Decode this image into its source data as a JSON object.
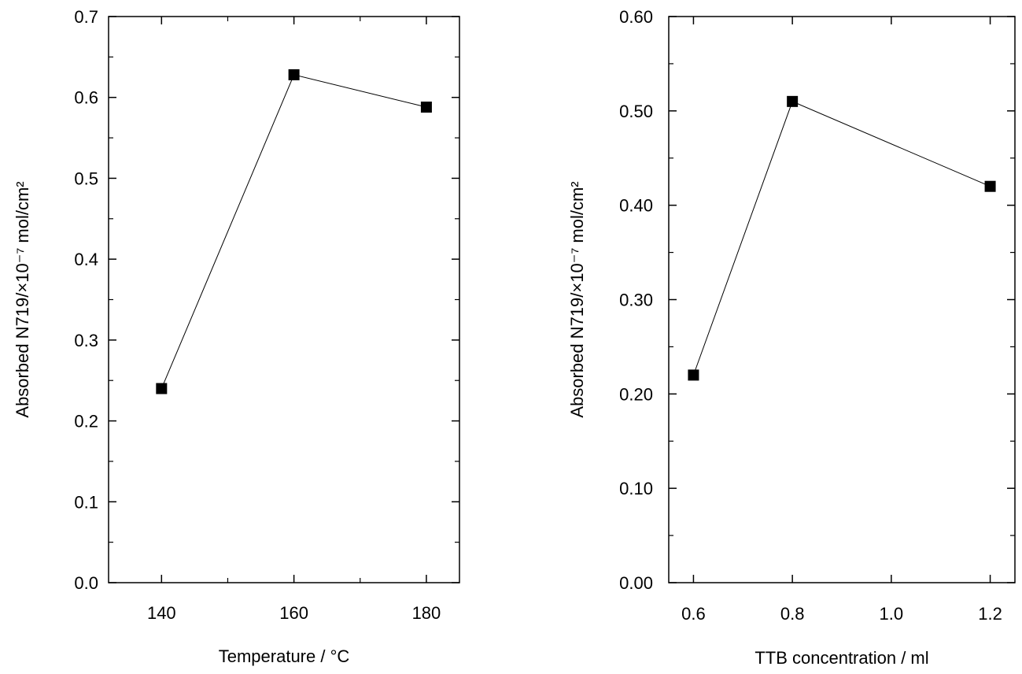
{
  "chart_data": [
    {
      "type": "line",
      "x": [
        140,
        160,
        180
      ],
      "series": [
        {
          "values": [
            0.24,
            0.628,
            0.588
          ]
        }
      ],
      "xlabel": "Temperature / °C",
      "ylabel": "Absorbed N719/×10⁻⁷ mol/cm²",
      "xlim": [
        132,
        185
      ],
      "ylim": [
        0,
        0.7
      ],
      "xticks": [
        "140",
        "160",
        "180"
      ],
      "yticks": [
        "0.0",
        "0.1",
        "0.2",
        "0.3",
        "0.4",
        "0.5",
        "0.6",
        "0.7"
      ],
      "grid": false,
      "legend": "none"
    },
    {
      "type": "line",
      "x": [
        0.6,
        0.8,
        1.2
      ],
      "series": [
        {
          "values": [
            0.22,
            0.51,
            0.42
          ]
        }
      ],
      "xlabel": "TTB concentration / ml",
      "ylabel": "Absorbed N719/×10⁻⁷ mol/cm²",
      "xlim": [
        0.55,
        1.25
      ],
      "ylim": [
        0,
        0.6
      ],
      "xticks": [
        "0.6",
        "0.8",
        "1.0",
        "1.2"
      ],
      "yticks": [
        "0.00",
        "0.10",
        "0.20",
        "0.30",
        "0.40",
        "0.50",
        "0.60"
      ],
      "grid": false,
      "legend": "none"
    }
  ]
}
